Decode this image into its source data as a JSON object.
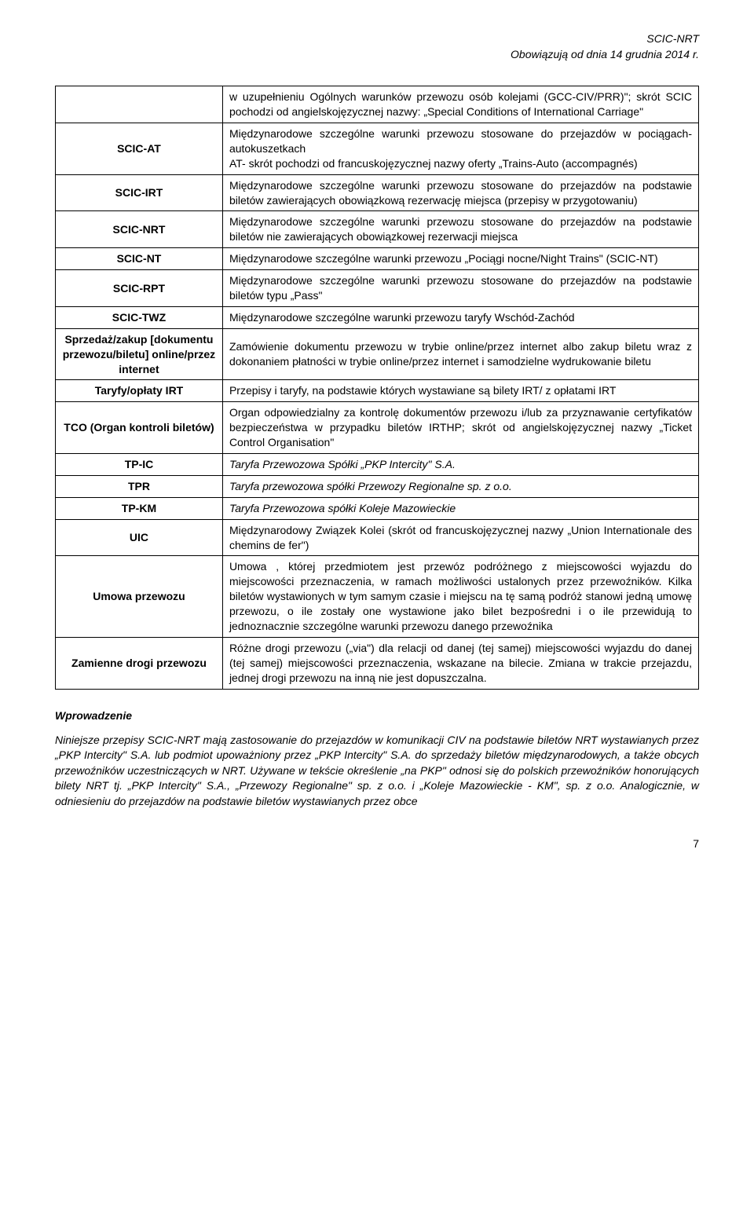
{
  "header": {
    "line1": "SCIC-NRT",
    "line2": "Obowiązują od dnia 14 grudnia 2014 r."
  },
  "rows": [
    {
      "label": "",
      "desc": "w uzupełnieniu Ogólnych warunków przewozu osób kolejami (GCC-CIV/PRR)\"; skrót SCIC pochodzi od angielskojęzycznej nazwy: „Special Conditions of International Carriage\""
    },
    {
      "label": "SCIC-AT",
      "desc": "Międzynarodowe szczególne warunki przewozu stosowane do przejazdów w pociągach-autokuszetkach\nAT- skrót pochodzi od francuskojęzycznej nazwy oferty „Trains-Auto (accompagnés)"
    },
    {
      "label": "SCIC-IRT",
      "desc": "Międzynarodowe szczególne warunki przewozu stosowane do przejazdów na podstawie biletów  zawierających obowiązkową rezerwację miejsca (przepisy w przygotowaniu)"
    },
    {
      "label": "SCIC-NRT",
      "desc": "Międzynarodowe szczególne warunki przewozu stosowane do przejazdów na podstawie biletów nie zawierających obowiązkowej rezerwacji miejsca"
    },
    {
      "label": "SCIC-NT",
      "desc": "Międzynarodowe szczególne warunki przewozu „Pociągi nocne/Night Trains\" (SCIC-NT)"
    },
    {
      "label": "SCIC-RPT",
      "desc": "Międzynarodowe szczególne warunki przewozu stosowane do przejazdów na podstawie biletów typu „Pass\""
    },
    {
      "label": "SCIC-TWZ",
      "desc": "Międzynarodowe szczególne warunki przewozu taryfy Wschód-Zachód"
    },
    {
      "label": "Sprzedaż/zakup [dokumentu przewozu/biletu] online/przez internet",
      "desc": "Zamówienie dokumentu przewozu w trybie online/przez internet albo zakup biletu wraz z dokonaniem płatności w trybie online/przez internet i samodzielne wydrukowanie biletu"
    },
    {
      "label": "Taryfy/opłaty IRT",
      "desc": "Przepisy i taryfy, na podstawie których wystawiane są bilety IRT/ z opłatami IRT"
    },
    {
      "label": "TCO (Organ kontroli biletów)",
      "desc": "Organ odpowiedzialny za kontrolę dokumentów przewozu i/lub za przyznawanie certyfikatów bezpieczeństwa w przypadku biletów IRTHP; skrót od angielskojęzycznej nazwy „Ticket Control Organisation\""
    },
    {
      "label": "TP-IC",
      "desc": "Taryfa Przewozowa Spółki „PKP Intercity\" S.A."
    },
    {
      "label": "TPR",
      "desc": "Taryfa przewozowa spółki Przewozy Regionalne sp. z o.o."
    },
    {
      "label": "TP-KM",
      "desc": "Taryfa Przewozowa spółki Koleje Mazowieckie"
    },
    {
      "label": "UIC",
      "desc": "Międzynarodowy Związek Kolei (skrót od francuskojęzycznej nazwy „Union Internationale des chemins de fer\")"
    },
    {
      "label": "Umowa przewozu",
      "desc": "Umowa , której przedmiotem jest przewóz podróżnego z miejscowości wyjazdu do miejscowości przeznaczenia, w ramach możliwości ustalonych przez przewoźników. Kilka biletów wystawionych w tym samym czasie i miejscu na tę samą podróż stanowi jedną umowę przewozu, o ile zostały one wystawione jako bilet bezpośredni i o ile przewidują to jednoznacznie szczególne warunki przewozu danego przewoźnika"
    },
    {
      "label": "Zamienne drogi przewozu",
      "desc": "Różne drogi przewozu („via\") dla relacji od danej (tej samej) miejscowości wyjazdu do danej (tej samej) miejscowości przeznaczenia, wskazane na bilecie. Zmiana w trakcie przejazdu, jednej drogi przewozu na inną nie jest dopuszczalna."
    }
  ],
  "intro": {
    "heading": "Wprowadzenie",
    "body": "Niniejsze przepisy SCIC-NRT mają zastosowanie do przejazdów w komunikacji CIV na podstawie biletów NRT wystawianych przez „PKP Intercity\" S.A. lub podmiot upoważniony przez „PKP Intercity\" S.A. do sprzedaży biletów międzynarodowych, a także obcych przewoźników uczestniczących w NRT. Używane w tekście określenie „na PKP\" odnosi się do polskich przewoźników honorujących bilety NRT tj. „PKP Intercity\" S.A., „Przewozy Regionalne\" sp. z o.o. i „Koleje Mazowieckie - KM\", sp. z o.o. Analogicznie, w odniesieniu do przejazdów na podstawie biletów wystawianych przez obce"
  },
  "page_number": "7"
}
